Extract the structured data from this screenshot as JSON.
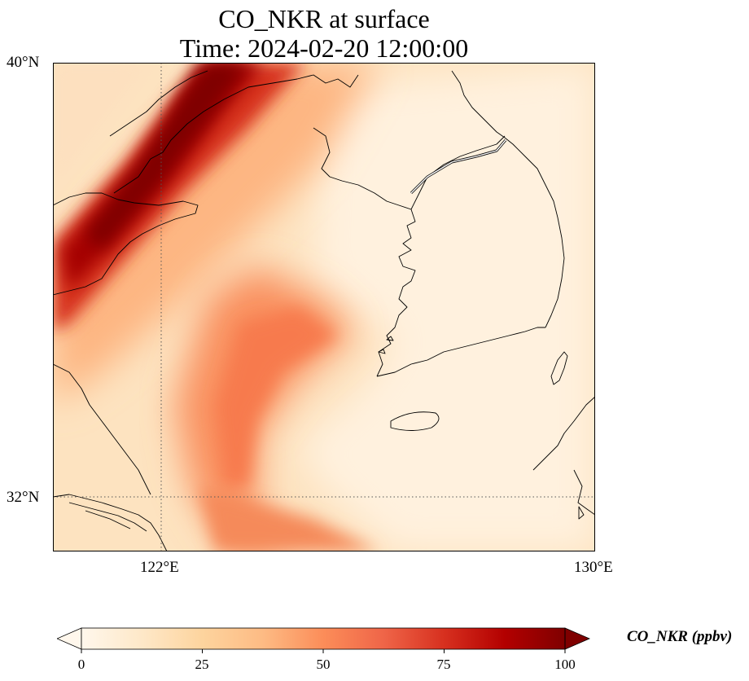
{
  "title": {
    "line1": "CO_NKR at surface",
    "line2": "Time: 2024-02-20 12:00:00"
  },
  "map": {
    "lat_labels": [
      "40°N",
      "32°N"
    ],
    "lon_labels": [
      "122°E",
      "130°E"
    ],
    "extent": {
      "lon_min": 120.4,
      "lon_max": 130.0,
      "lat_min": 31.0,
      "lat_max": 40.0
    },
    "gridlines": {
      "lon": [
        122
      ],
      "lat": [
        32
      ],
      "style": "dotted"
    }
  },
  "colorbar": {
    "label": "CO_NKR (ppbv)",
    "ticks": [
      "0",
      "25",
      "50",
      "75",
      "100"
    ],
    "min": 0,
    "max": 100,
    "extend": "both",
    "colormap": [
      "#fff7ec",
      "#fee8c8",
      "#fdd49e",
      "#fdbb84",
      "#fc8d59",
      "#ef6548",
      "#d7301f",
      "#b30000",
      "#7f0000"
    ]
  }
}
